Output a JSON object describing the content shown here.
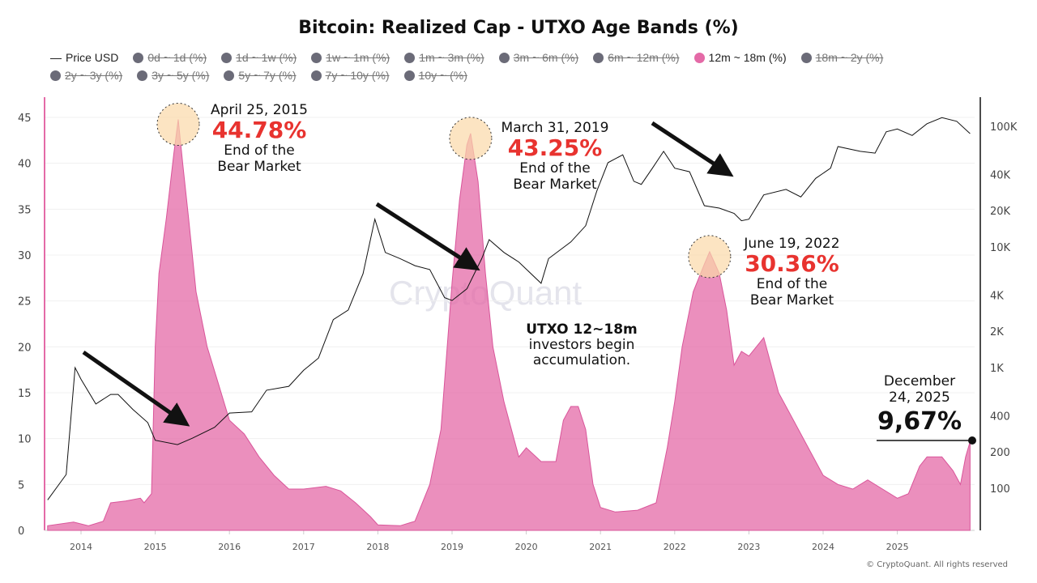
{
  "chart_data": {
    "type": "area",
    "title": "Bitcoin: Realized Cap - UTXO Age Bands (%)",
    "legend": [
      {
        "label": "Price USD",
        "active": true,
        "marker": "line"
      },
      {
        "label": "0d ~ 1d (%)",
        "active": false
      },
      {
        "label": "1d ~ 1w (%)",
        "active": false
      },
      {
        "label": "1w ~ 1m (%)",
        "active": false
      },
      {
        "label": "1m ~ 3m (%)",
        "active": false
      },
      {
        "label": "3m ~ 6m (%)",
        "active": false
      },
      {
        "label": "6m ~ 12m (%)",
        "active": false
      },
      {
        "label": "12m ~ 18m (%)",
        "active": true,
        "color": "#e46aa7"
      },
      {
        "label": "18m ~ 2y (%)",
        "active": false
      },
      {
        "label": "2y ~ 3y (%)",
        "active": false
      },
      {
        "label": "3y ~ 5y (%)",
        "active": false
      },
      {
        "label": "5y ~ 7y (%)",
        "active": false
      },
      {
        "label": "7y ~ 10y (%)",
        "active": false
      },
      {
        "label": "10y ~ (%)",
        "active": false
      }
    ],
    "x_ticks": [
      "2014",
      "2015",
      "2016",
      "2017",
      "2018",
      "2019",
      "2020",
      "2021",
      "2022",
      "2023",
      "2024",
      "2025"
    ],
    "y_left_ticks": [
      "0",
      "5",
      "10",
      "15",
      "20",
      "25",
      "30",
      "35",
      "40",
      "45"
    ],
    "y_right_ticks": [
      "100",
      "200",
      "400",
      "1K",
      "2K",
      "4K",
      "10K",
      "20K",
      "40K",
      "100K"
    ],
    "y_right_scale": "log",
    "ylim_left": [
      0,
      45
    ],
    "ylim_right": [
      100,
      100000
    ],
    "xlim": [
      2013.55,
      2025.98
    ],
    "grid": true,
    "series": [
      {
        "name": "12m ~ 18m (%)",
        "axis": "left",
        "color": "#e46aa7",
        "type": "area",
        "x": [
          2013.55,
          2013.9,
          2014.1,
          2014.3,
          2014.4,
          2014.6,
          2014.8,
          2014.85,
          2014.95,
          2015.0,
          2015.05,
          2015.15,
          2015.25,
          2015.31,
          2015.37,
          2015.45,
          2015.55,
          2015.7,
          2015.85,
          2016.0,
          2016.2,
          2016.4,
          2016.6,
          2016.8,
          2017.0,
          2017.3,
          2017.5,
          2017.7,
          2017.9,
          2018.0,
          2018.3,
          2018.5,
          2018.7,
          2018.85,
          2019.0,
          2019.1,
          2019.2,
          2019.25,
          2019.35,
          2019.45,
          2019.55,
          2019.7,
          2019.9,
          2020.0,
          2020.2,
          2020.4,
          2020.5,
          2020.6,
          2020.7,
          2020.8,
          2020.9,
          2021.0,
          2021.2,
          2021.5,
          2021.75,
          2021.9,
          2022.0,
          2022.1,
          2022.25,
          2022.4,
          2022.47,
          2022.6,
          2022.7,
          2022.8,
          2022.9,
          2023.0,
          2023.1,
          2023.2,
          2023.3,
          2023.4,
          2023.6,
          2023.8,
          2024.0,
          2024.2,
          2024.4,
          2024.6,
          2024.8,
          2025.0,
          2025.15,
          2025.3,
          2025.4,
          2025.6,
          2025.75,
          2025.85,
          2025.92,
          2025.98
        ],
        "y": [
          0.5,
          0.9,
          0.5,
          1,
          3,
          3.2,
          3.5,
          3,
          4,
          20,
          28,
          34,
          41,
          44.78,
          40,
          34,
          26,
          20,
          16,
          12,
          10.5,
          8,
          6,
          4.5,
          4.5,
          4.8,
          4.3,
          3,
          1.5,
          0.6,
          0.5,
          1,
          5,
          11,
          27,
          36,
          42,
          43.25,
          38,
          28,
          20,
          14,
          8,
          9,
          7.5,
          7.5,
          12,
          13.5,
          13.5,
          11,
          5,
          2.5,
          2,
          2.2,
          3,
          9,
          14,
          20,
          26,
          29,
          30.36,
          28,
          24,
          18,
          19.5,
          19,
          20,
          21,
          18,
          15,
          12,
          9,
          6,
          5,
          4.5,
          5.5,
          4.5,
          3.5,
          4,
          7,
          8,
          8,
          6.5,
          5,
          8,
          9.67
        ]
      },
      {
        "name": "Price USD",
        "axis": "right",
        "color": "#111111",
        "type": "line",
        "x": [
          2013.55,
          2013.8,
          2013.92,
          2014.0,
          2014.2,
          2014.4,
          2014.5,
          2014.7,
          2014.9,
          2015.0,
          2015.3,
          2015.5,
          2015.8,
          2016.0,
          2016.3,
          2016.5,
          2016.8,
          2017.0,
          2017.2,
          2017.4,
          2017.6,
          2017.8,
          2017.96,
          2018.1,
          2018.3,
          2018.5,
          2018.7,
          2018.9,
          2019.0,
          2019.2,
          2019.4,
          2019.5,
          2019.7,
          2019.9,
          2020.2,
          2020.3,
          2020.6,
          2020.8,
          2020.95,
          2021.1,
          2021.3,
          2021.45,
          2021.55,
          2021.7,
          2021.85,
          2022.0,
          2022.2,
          2022.4,
          2022.6,
          2022.8,
          2022.9,
          2023.0,
          2023.2,
          2023.5,
          2023.7,
          2023.9,
          2024.1,
          2024.2,
          2024.5,
          2024.7,
          2024.85,
          2025.0,
          2025.2,
          2025.4,
          2025.6,
          2025.8,
          2025.98
        ],
        "y": [
          80,
          130,
          1000,
          800,
          500,
          600,
          600,
          450,
          350,
          250,
          230,
          260,
          320,
          420,
          430,
          650,
          700,
          950,
          1200,
          2500,
          3000,
          6000,
          17000,
          9000,
          8000,
          7000,
          6500,
          3800,
          3600,
          4500,
          8000,
          11500,
          9000,
          7500,
          5000,
          8000,
          11000,
          15000,
          29000,
          50000,
          58000,
          35000,
          33000,
          45000,
          62000,
          45000,
          42000,
          22000,
          21000,
          19000,
          16500,
          17000,
          27000,
          30000,
          26000,
          37000,
          45000,
          68000,
          62000,
          60000,
          90000,
          95000,
          84000,
          105000,
          118000,
          110000,
          87000
        ]
      }
    ],
    "annotations": [
      {
        "date": "April 25, 2015",
        "value": "44.78%",
        "note": "End of the Bear Market"
      },
      {
        "date": "March 31, 2019",
        "value": "43.25%",
        "note": "End of the Bear Market"
      },
      {
        "date": "June 19, 2022",
        "value": "30.36%",
        "note": "End of the Bear Market"
      },
      {
        "date": "December 24, 2025",
        "value": "9,67%"
      }
    ],
    "callout": {
      "bold": "UTXO 12~18m",
      "text": "investors begin accumulation."
    }
  },
  "watermark": "CryptoQuant",
  "copyright": "© CryptoQuant. All rights reserved"
}
